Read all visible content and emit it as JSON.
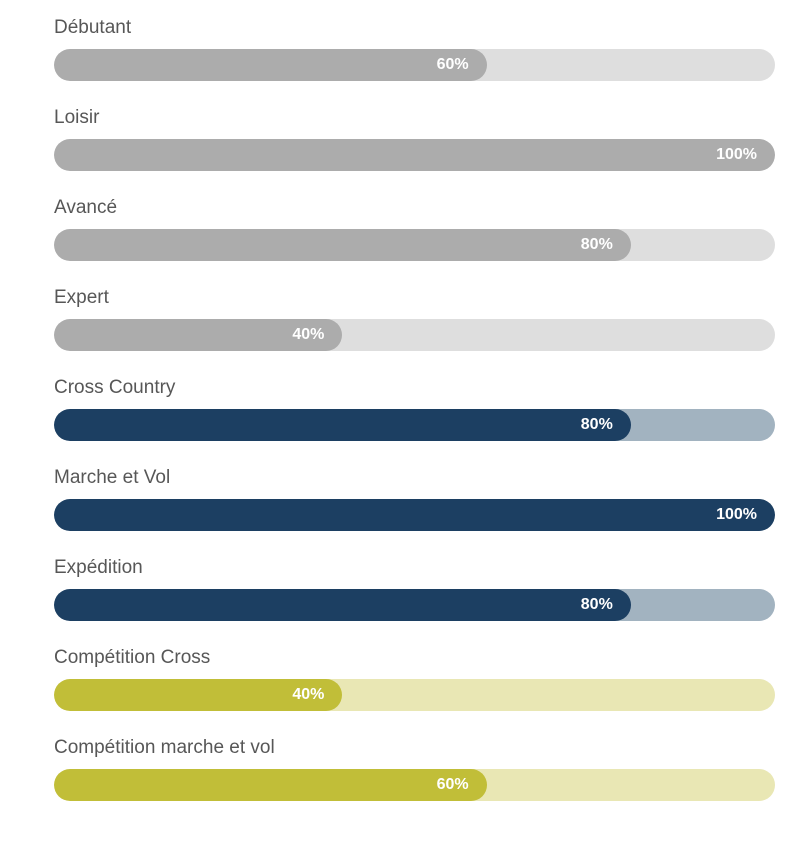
{
  "colors": {
    "grey": {
      "fill": "#acacac",
      "track": "#dedede"
    },
    "navy": {
      "fill": "#1c3f62",
      "track": "#a2b3c0"
    },
    "olive": {
      "fill": "#c1be38",
      "track": "#e9e7b4"
    }
  },
  "skills": [
    {
      "label": "Débutant",
      "value_text": "60%",
      "value": 60,
      "color": "grey"
    },
    {
      "label": "Loisir",
      "value_text": "100%",
      "value": 100,
      "color": "grey"
    },
    {
      "label": "Avancé",
      "value_text": "80%",
      "value": 80,
      "color": "grey"
    },
    {
      "label": "Expert",
      "value_text": "40%",
      "value": 40,
      "color": "grey"
    },
    {
      "label": "Cross Country",
      "value_text": "80%",
      "value": 80,
      "color": "navy"
    },
    {
      "label": "Marche et Vol",
      "value_text": "100%",
      "value": 100,
      "color": "navy"
    },
    {
      "label": "Expédition",
      "value_text": "80%",
      "value": 80,
      "color": "navy"
    },
    {
      "label": "Compétition Cross",
      "value_text": "40%",
      "value": 40,
      "color": "olive"
    },
    {
      "label": "Compétition marche et vol",
      "value_text": "60%",
      "value": 60,
      "color": "olive"
    }
  ]
}
